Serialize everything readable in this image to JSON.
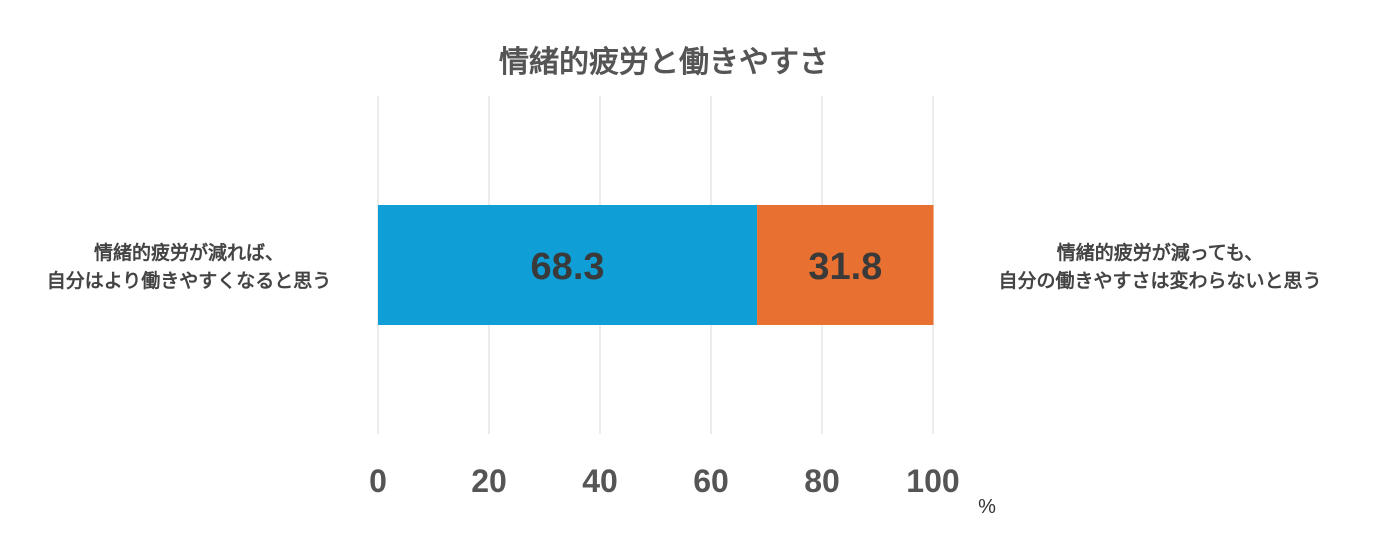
{
  "chart_data": {
    "type": "bar",
    "orientation": "horizontal",
    "stacked": true,
    "title": "情緒的疲労と働きやすさ",
    "categories": [
      ""
    ],
    "series": [
      {
        "label_lines": [
          "情緒的疲労が減れば、",
          "自分はより働きやすくなると思う"
        ],
        "values": [
          68.3
        ],
        "color": "#0f9fd6"
      },
      {
        "label_lines": [
          "情緒的疲労が減っても、",
          "自分の働きやすさは変わらないと思う"
        ],
        "values": [
          31.8
        ],
        "color": "#e87030"
      }
    ],
    "xlim": [
      0,
      100
    ],
    "xticks": [
      0,
      20,
      40,
      60,
      80,
      100
    ],
    "xunit": "%",
    "grid": true,
    "legend": "none"
  }
}
